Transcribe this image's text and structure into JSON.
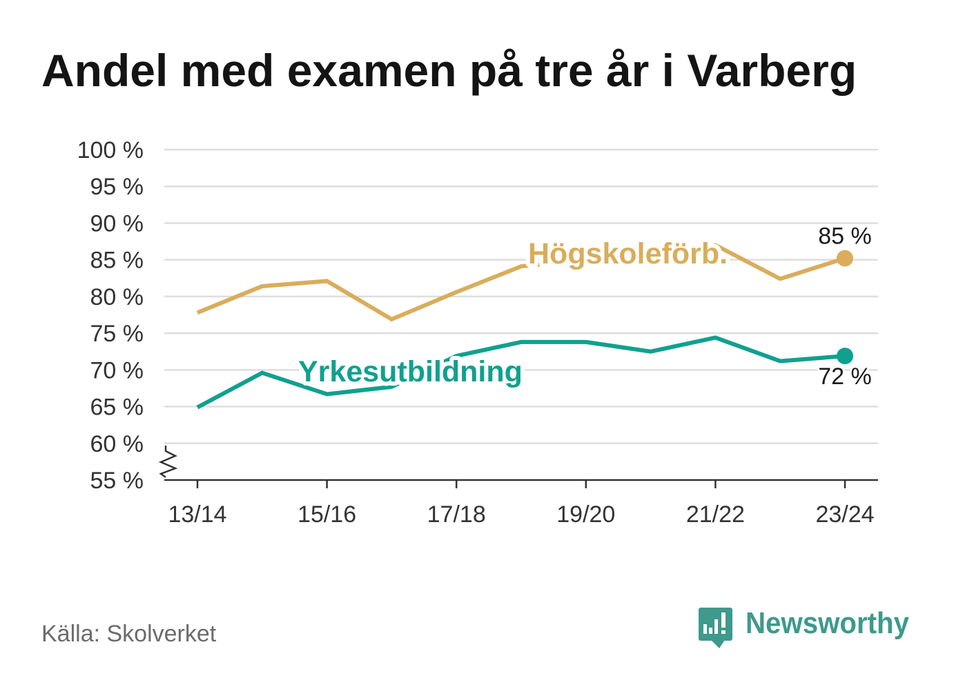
{
  "chart_data": {
    "type": "line",
    "title": "Andel med examen på tre år i Varberg",
    "xlabel": "",
    "ylabel": "",
    "categories": [
      "13/14",
      "",
      "15/16",
      "",
      "17/18",
      "",
      "19/20",
      "",
      "21/22",
      "",
      "23/24"
    ],
    "ylim": [
      55,
      100
    ],
    "yticks": [
      100,
      95,
      90,
      85,
      80,
      75,
      70,
      65,
      60,
      55
    ],
    "ytick_labels": [
      "100 %",
      "95 %",
      "90 %",
      "85 %",
      "80 %",
      "75 %",
      "70 %",
      "65 %",
      "60 %",
      "55 %"
    ],
    "y_axis_break": true,
    "grid": true,
    "legend": "inline",
    "series": [
      {
        "name": "Högskoleförb.",
        "color": "#d9ad5b",
        "values": [
          77.8,
          81.4,
          82.1,
          76.9,
          80.6,
          84.1,
          85.0,
          86.0,
          87.0,
          82.4,
          85.2
        ],
        "end_label": "85 %"
      },
      {
        "name": "Yrkesutbildning",
        "color": "#10a08f",
        "values": [
          64.9,
          69.6,
          66.7,
          67.7,
          71.9,
          73.8,
          73.8,
          72.5,
          74.4,
          71.2,
          71.9
        ],
        "end_label": "72 %"
      }
    ]
  },
  "footer": {
    "source": "Källa: Skolverket",
    "brand": "Newsworthy",
    "brand_color": "#3d9a8c",
    "brand_icon": "bar-chart-speech-bubble-icon"
  }
}
